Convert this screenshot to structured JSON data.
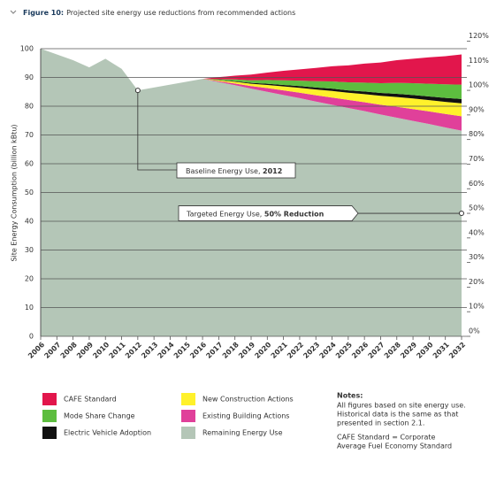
{
  "chart_data": {
    "type": "stacked-area",
    "title": {
      "prefix": "Figure 10:",
      "text": "Projected site energy use reductions from recommended actions"
    },
    "ylabel": "Site Energy Consumption (billion kBtu)",
    "categories": [
      "2006",
      "2007",
      "2008",
      "2009",
      "2010",
      "2011",
      "2012",
      "2013",
      "2014",
      "2015",
      "2016",
      "2017",
      "2018",
      "2019",
      "2020",
      "2021",
      "2022",
      "2023",
      "2024",
      "2025",
      "2026",
      "2027",
      "2028",
      "2029",
      "2030",
      "2031",
      "2032"
    ],
    "series": [
      {
        "name": "CAFE Standard",
        "color": "#e2164c",
        "values": [
          0,
          0,
          0,
          0,
          0,
          0,
          0,
          0,
          0,
          0,
          0,
          0.7,
          1.3,
          2,
          2.6,
          3.3,
          3.9,
          4.6,
          5.3,
          5.9,
          6.6,
          7.2,
          7.9,
          8.5,
          9.2,
          9.8,
          10.5
        ]
      },
      {
        "name": "Mode Share Change",
        "color": "#5dbd3f",
        "values": [
          0,
          0,
          0,
          0,
          0,
          0,
          0,
          0,
          0,
          0,
          0,
          0.3,
          0.6,
          0.9,
          1.3,
          1.6,
          1.9,
          2.2,
          2.5,
          2.8,
          3.1,
          3.4,
          3.8,
          4.1,
          4.4,
          4.7,
          5
        ]
      },
      {
        "name": "Electric Vehicle Adoption",
        "color": "#111111",
        "values": [
          0,
          0,
          0,
          0,
          0,
          0,
          0,
          0,
          0,
          0,
          0,
          0.1,
          0.2,
          0.3,
          0.4,
          0.5,
          0.6,
          0.7,
          0.8,
          0.8,
          0.9,
          1,
          1.1,
          1.2,
          1.3,
          1.4,
          1.5
        ]
      },
      {
        "name": "New Construction Actions",
        "color": "#fff12b",
        "values": [
          0,
          0,
          0,
          0,
          0,
          0,
          0,
          0,
          0,
          0,
          0,
          0.3,
          0.6,
          0.8,
          1.1,
          1.4,
          1.7,
          2,
          2.3,
          2.5,
          2.8,
          3.1,
          3.4,
          3.7,
          3.9,
          4.2,
          4.5
        ]
      },
      {
        "name": "Existing Building Actions",
        "color": "#e0409a",
        "values": [
          0,
          0,
          0,
          0,
          0,
          0,
          0,
          0,
          0,
          0,
          0,
          0.3,
          0.6,
          0.9,
          1.3,
          1.6,
          1.9,
          2.2,
          2.5,
          2.8,
          3.1,
          3.4,
          3.8,
          4.1,
          4.4,
          4.7,
          5
        ]
      },
      {
        "name": "Remaining Energy Use",
        "color": "#b4c6b7",
        "values": [
          100,
          98,
          96,
          93.5,
          96.5,
          93,
          85.5,
          86.5,
          87.5,
          88.5,
          89.5,
          88.4,
          87.3,
          86.1,
          85,
          83.9,
          82.8,
          81.6,
          80.5,
          79.4,
          78.3,
          77.1,
          76,
          74.9,
          73.8,
          72.6,
          71.5
        ]
      }
    ],
    "ylim": [
      0,
      100
    ],
    "yticks": [
      0,
      10,
      20,
      30,
      40,
      50,
      60,
      70,
      80,
      90,
      100
    ],
    "y2lim": [
      0,
      120
    ],
    "y2ticks": [
      {
        "value": 0,
        "label": "0%"
      },
      {
        "value": 10,
        "label": "10%"
      },
      {
        "value": 20,
        "label": "20%"
      },
      {
        "value": 30,
        "label": "30%"
      },
      {
        "value": 40,
        "label": "40%"
      },
      {
        "value": 50,
        "label": "50%"
      },
      {
        "value": 60,
        "label": "60%"
      },
      {
        "value": 70,
        "label": "70%"
      },
      {
        "value": 80,
        "label": "80%"
      },
      {
        "value": 90,
        "label": "90%"
      },
      {
        "value": 100,
        "label": "100%"
      },
      {
        "value": 110,
        "label": "110%"
      },
      {
        "value": 120,
        "label": "120%"
      }
    ],
    "grid": true,
    "annotations": [
      {
        "text": "Baseline Energy Use, ",
        "bold": "2012"
      },
      {
        "text": "Targeted Energy Use, ",
        "bold": "50% Reduction",
        "value": 50,
        "axis": "y2"
      }
    ],
    "notes": {
      "title": "Notes:",
      "paragraphs": [
        [
          "All figures based on site energy use.",
          "Historical data is the same as that",
          "presented in section 2.1."
        ],
        [
          "CAFE Standard = Corporate",
          "Average Fuel Economy Standard"
        ]
      ]
    }
  }
}
